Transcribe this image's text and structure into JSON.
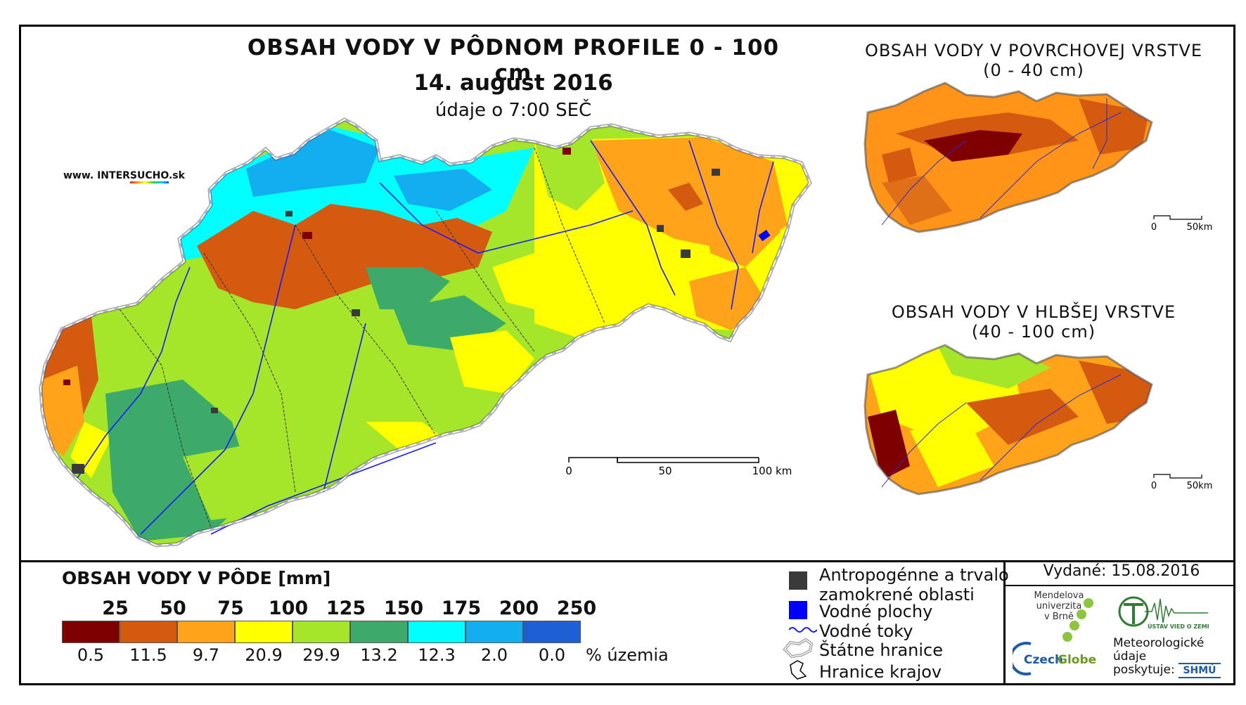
{
  "main_map": {
    "title": "OBSAH VODY V PÔDNOM PROFILE 0 - 100 cm",
    "date": "14. august 2016",
    "time": "údaje o 7:00 SEČ",
    "scale_labels": [
      "0",
      "50",
      "100 km"
    ]
  },
  "website": {
    "prefix": "www. INTER",
    "highlight": "SUCHO",
    "suffix": ".sk"
  },
  "inset_top": {
    "title_line1": "OBSAH VODY V POVRCHOVEJ VRSTVE",
    "title_line2": "(0 - 40 cm)",
    "scale_labels": [
      "0",
      "50km"
    ]
  },
  "inset_bottom": {
    "title_line1": "OBSAH VODY V HLBŠEJ VRSTVE",
    "title_line2": "(40 - 100 cm)",
    "scale_labels": [
      "0",
      "50km"
    ]
  },
  "legend": {
    "title": "OBSAH VODY V PÔDE [mm]",
    "classes": [
      {
        "label": "25",
        "color": "#7f0000",
        "pct": "0.5"
      },
      {
        "label": "50",
        "color": "#d45a10",
        "pct": "11.5"
      },
      {
        "label": "75",
        "color": "#ffa31a",
        "pct": "9.7"
      },
      {
        "label": "100",
        "color": "#ffff00",
        "pct": "20.9"
      },
      {
        "label": "125",
        "color": "#a6e62a",
        "pct": "29.9"
      },
      {
        "label": "150",
        "color": "#3cab6a",
        "pct": "13.2"
      },
      {
        "label": "175",
        "color": "#00ffff",
        "pct": "12.3"
      },
      {
        "label": "200",
        "color": "#12aef0",
        "pct": "2.0"
      },
      {
        "label": "250",
        "color": "#1f5fd6",
        "pct": "0.0"
      }
    ],
    "pct_unit": "% územia"
  },
  "map_key": {
    "anthropogenic_line1": "Antropogénne a trvalo",
    "anthropogenic_line2": "zamokrené oblasti",
    "water_bodies": "Vodné plochy",
    "water_streams": "Vodné toky",
    "state_border": "Štátne hranice",
    "region_border": "Hranice krajov"
  },
  "issued": "Vydané: 15.08.2016",
  "logos": {
    "mendel_line1": "Mendelova",
    "mendel_line2": "univerzita",
    "mendel_line3": "v Brně",
    "czechglobe_a": "Czech",
    "czechglobe_b": "Globe",
    "uvoz": "ÚSTAV VIED O ZEMI",
    "meteo_line1": "Meteorologické",
    "meteo_line2": "údaje",
    "meteo_line3": "poskytuje:",
    "shmu": "SHMÚ"
  }
}
